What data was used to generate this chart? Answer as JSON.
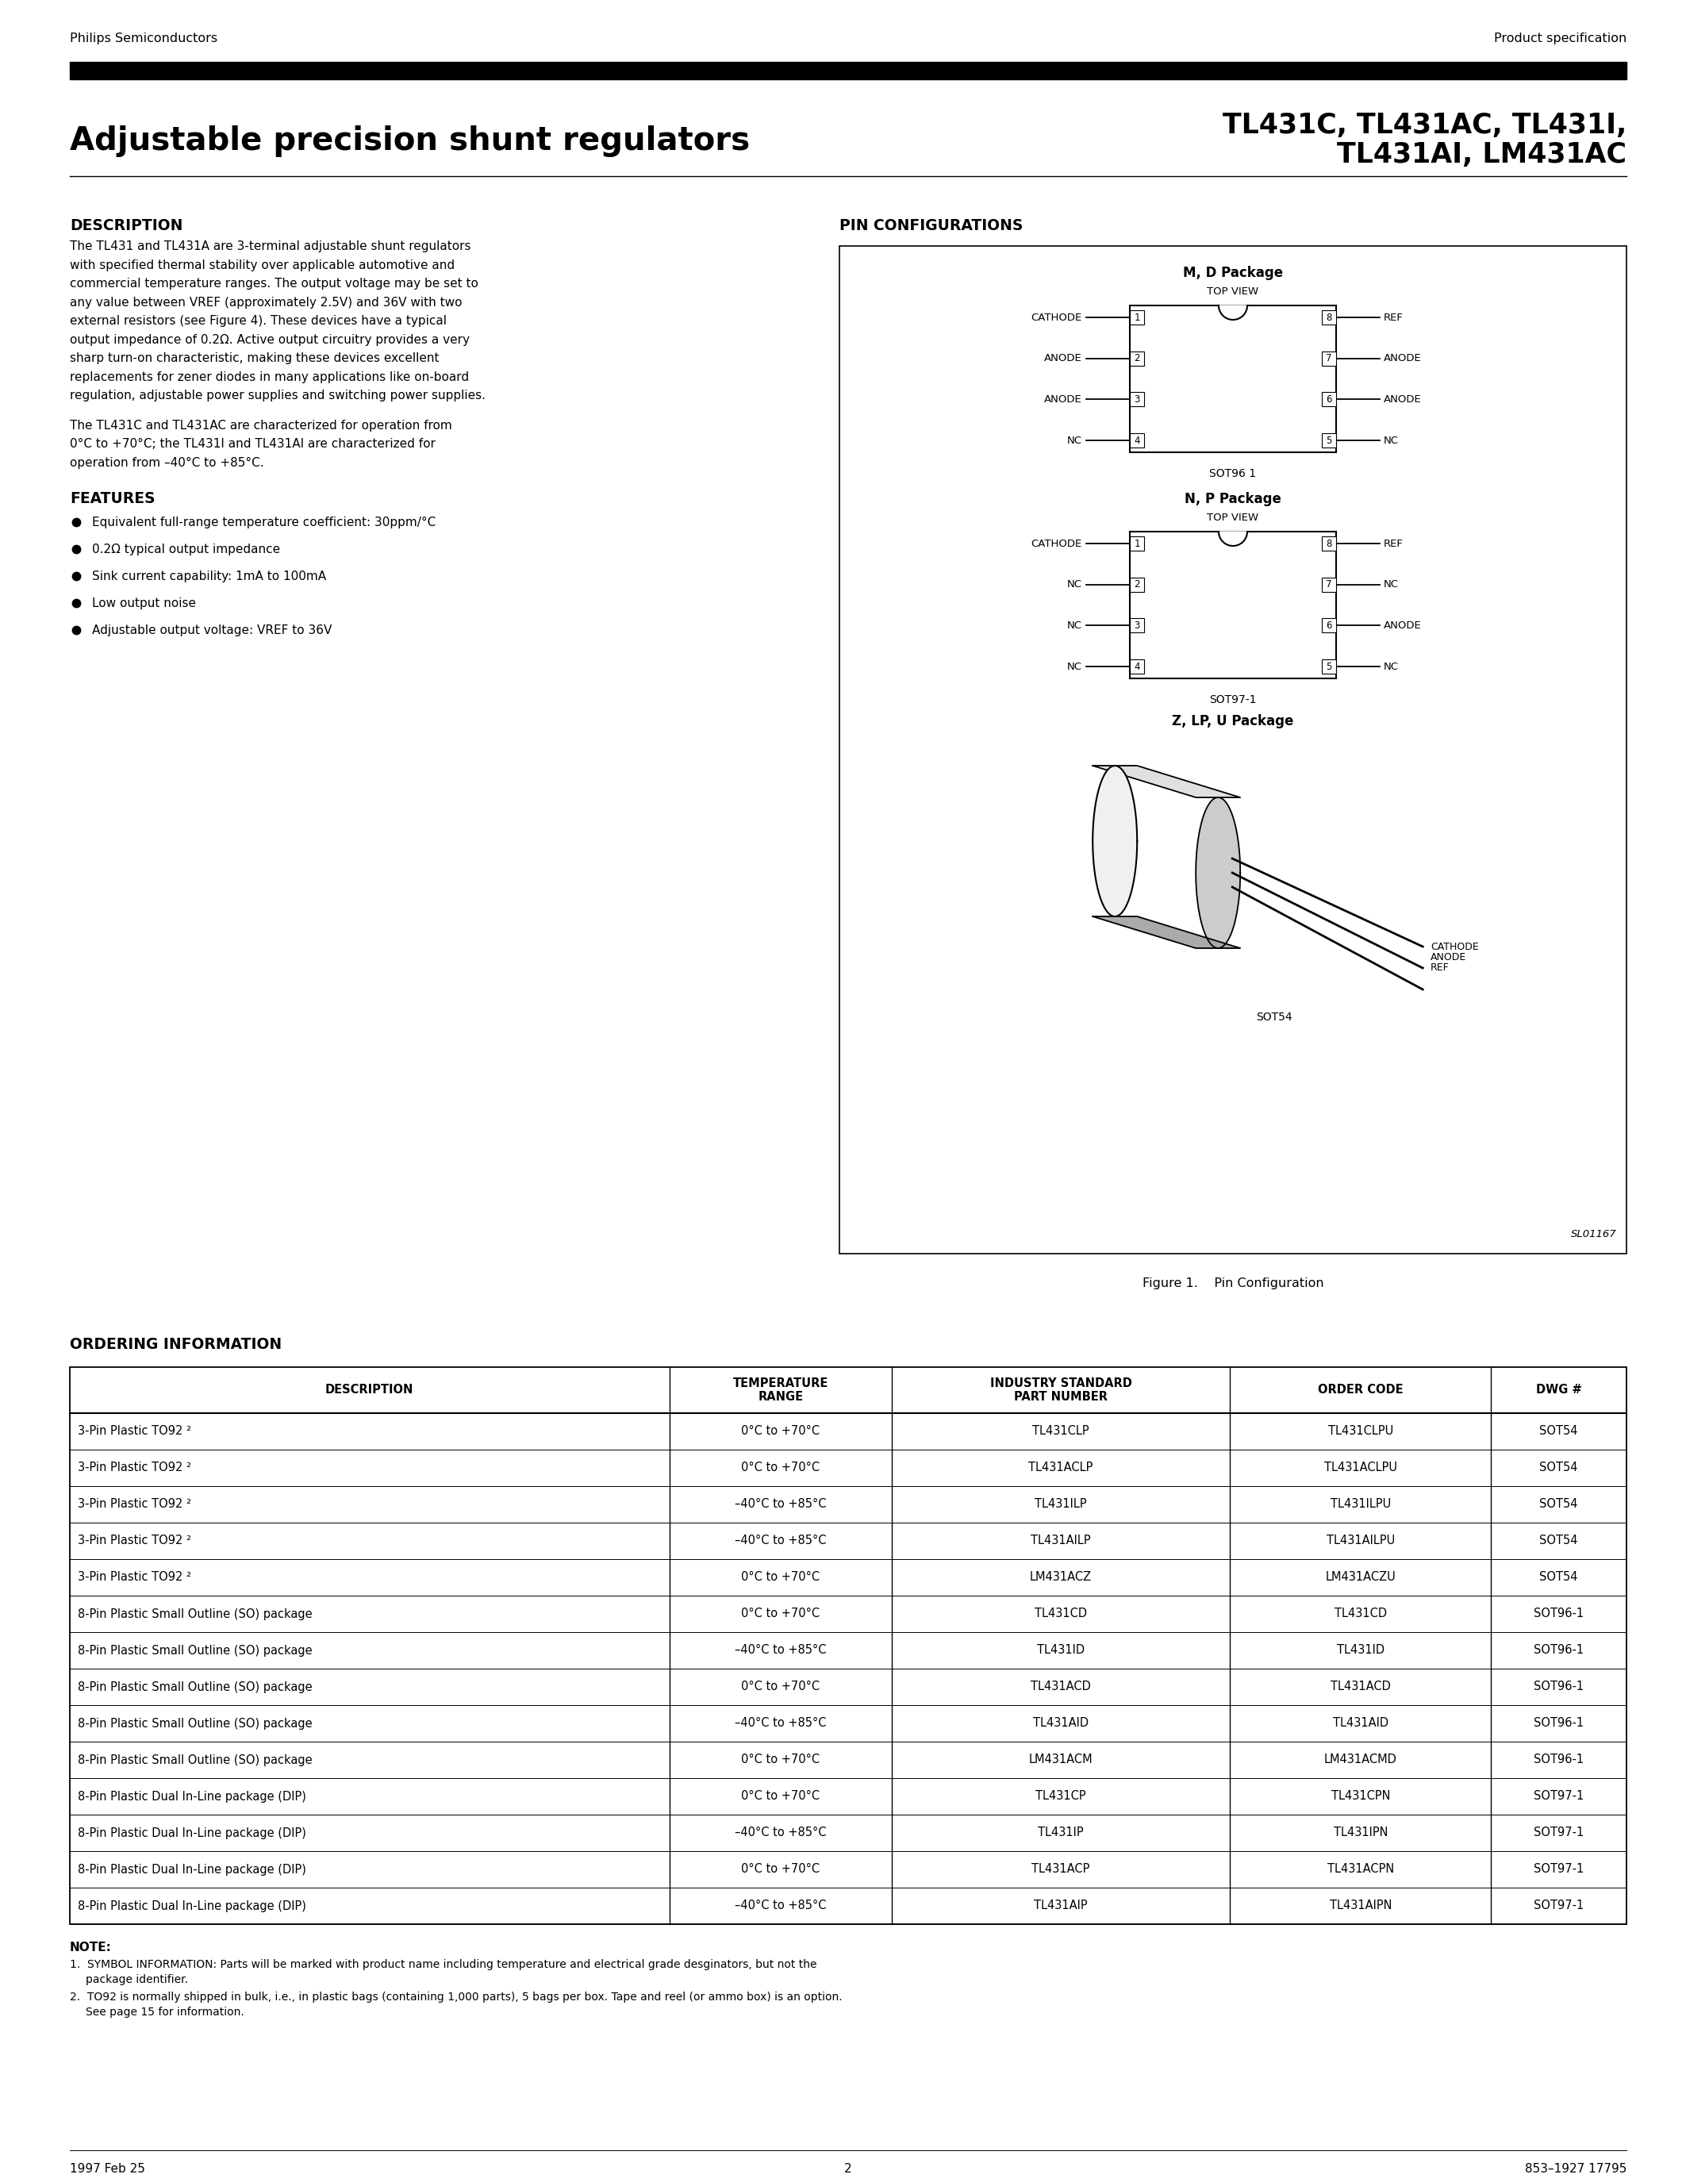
{
  "page_bg": "#ffffff",
  "header_company": "Philips Semiconductors",
  "header_right": "Product specification",
  "title_left": "Adjustable precision shunt regulators",
  "title_right_line1": "TL431C, TL431AC, TL431I,",
  "title_right_line2": "TL431AI, LM431AC",
  "section_description_title": "DESCRIPTION",
  "desc1_lines": [
    "The TL431 and TL431A are 3-terminal adjustable shunt regulators",
    "with specified thermal stability over applicable automotive and",
    "commercial temperature ranges. The output voltage may be set to",
    "any value between VREF (approximately 2.5V) and 36V with two",
    "external resistors (see Figure 4). These devices have a typical",
    "output impedance of 0.2Ω. Active output circuitry provides a very",
    "sharp turn-on characteristic, making these devices excellent",
    "replacements for zener diodes in many applications like on-board",
    "regulation, adjustable power supplies and switching power supplies."
  ],
  "desc2_lines": [
    "The TL431C and TL431AC are characterized for operation from",
    "0°C to +70°C; the TL431I and TL431AI are characterized for",
    "operation from –40°C to +85°C."
  ],
  "section_features_title": "FEATURES",
  "features": [
    "Equivalent full-range temperature coefficient: 30ppm/°C",
    "0.2Ω typical output impedance",
    "Sink current capability: 1mA to 100mA",
    "Low output noise",
    "Adjustable output voltage: VREF to 36V"
  ],
  "section_pin_title": "PIN CONFIGURATIONS",
  "md_pkg_title": "M, D Package",
  "md_pkg_sub": "TOP VIEW",
  "md_left_labels": [
    "CATHODE",
    "ANODE",
    "ANODE",
    "NC"
  ],
  "md_right_labels": [
    "REF",
    "ANODE",
    "ANODE",
    "NC"
  ],
  "md_pkg_code": "SOT96 1",
  "np_pkg_title": "N, P Package",
  "np_pkg_sub": "TOP VIEW",
  "np_left_labels": [
    "CATHODE",
    "NC",
    "NC",
    "NC"
  ],
  "np_right_labels": [
    "REF",
    "NC",
    "ANODE",
    "NC"
  ],
  "np_pkg_code": "SOT97-1",
  "zlp_pkg_title": "Z, LP, U Package",
  "zlp_labels": [
    "CATHODE",
    "ANODE",
    "REF"
  ],
  "zlp_pkg_code": "SOT54",
  "sl_code": "SL01167",
  "fig_caption": "Figure 1.    Pin Configuration",
  "ordering_title": "ORDERING INFORMATION",
  "ordering_headers": [
    "DESCRIPTION",
    "TEMPERATURE\nRANGE",
    "INDUSTRY STANDARD\nPART NUMBER",
    "ORDER CODE",
    "DWG #"
  ],
  "ordering_rows": [
    [
      "3-Pin Plastic TO92 ²",
      "0°C to +70°C",
      "TL431CLP",
      "TL431CLPU",
      "SOT54"
    ],
    [
      "3-Pin Plastic TO92 ²",
      "0°C to +70°C",
      "TL431ACLP",
      "TL431ACLPU",
      "SOT54"
    ],
    [
      "3-Pin Plastic TO92 ²",
      "–40°C to +85°C",
      "TL431ILP",
      "TL431ILPU",
      "SOT54"
    ],
    [
      "3-Pin Plastic TO92 ²",
      "–40°C to +85°C",
      "TL431AILP",
      "TL431AILPU",
      "SOT54"
    ],
    [
      "3-Pin Plastic TO92 ²",
      "0°C to +70°C",
      "LM431ACZ",
      "LM431ACZU",
      "SOT54"
    ],
    [
      "8-Pin Plastic Small Outline (SO) package",
      "0°C to +70°C",
      "TL431CD",
      "TL431CD",
      "SOT96-1"
    ],
    [
      "8-Pin Plastic Small Outline (SO) package",
      "–40°C to +85°C",
      "TL431ID",
      "TL431ID",
      "SOT96-1"
    ],
    [
      "8-Pin Plastic Small Outline (SO) package",
      "0°C to +70°C",
      "TL431ACD",
      "TL431ACD",
      "SOT96-1"
    ],
    [
      "8-Pin Plastic Small Outline (SO) package",
      "–40°C to +85°C",
      "TL431AID",
      "TL431AID",
      "SOT96-1"
    ],
    [
      "8-Pin Plastic Small Outline (SO) package",
      "0°C to +70°C",
      "LM431ACM",
      "LM431ACMD",
      "SOT96-1"
    ],
    [
      "8-Pin Plastic Dual In-Line package (DIP)",
      "0°C to +70°C",
      "TL431CP",
      "TL431CPN",
      "SOT97-1"
    ],
    [
      "8-Pin Plastic Dual In-Line package (DIP)",
      "–40°C to +85°C",
      "TL431IP",
      "TL431IPN",
      "SOT97-1"
    ],
    [
      "8-Pin Plastic Dual In-Line package (DIP)",
      "0°C to +70°C",
      "TL431ACP",
      "TL431ACPN",
      "SOT97-1"
    ],
    [
      "8-Pin Plastic Dual In-Line package (DIP)",
      "–40°C to +85°C",
      "TL431AIP",
      "TL431AIPN",
      "SOT97-1"
    ]
  ],
  "note_title": "NOTE:",
  "note1_label": "1.",
  "note1_text": " SYMBOL INFORMATION: Parts will be marked with product name including temperature and electrical grade desginators, but not the\n   package identifier.",
  "note2_label": "2.",
  "note2_text": " TO92 is normally shipped in bulk, i.e., in plastic bags (containing 1,000 parts), 5 bags per box. Tape and reel (or ammo box) is an option.\n   See page 15 for information.",
  "footer_left": "1997 Feb 25",
  "footer_center": "2",
  "footer_right": "853–1927 17795"
}
